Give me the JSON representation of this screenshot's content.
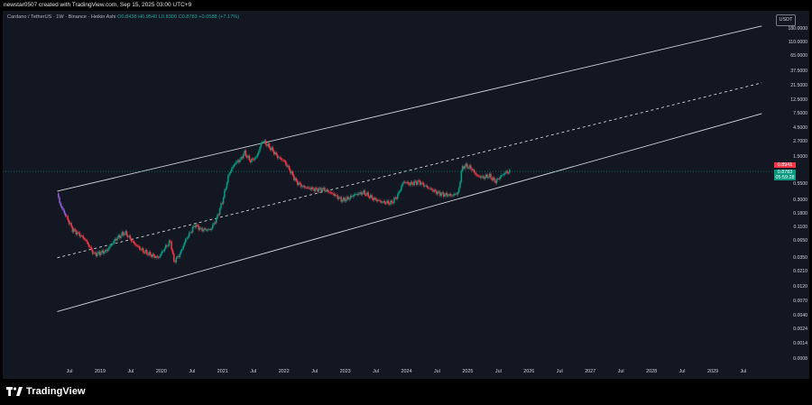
{
  "header": {
    "attribution": "newstar0507 created with TradingView.com, Sep 15, 2025 03:00 UTC+9"
  },
  "symbol_line": {
    "name": "Cardano / TetherUS · 1W · Binance · Heikin Ashi",
    "ohlc": "O0.8438 H0.9540 L0.8300 C0.8783 +0.0588 (+7.17%)"
  },
  "currency_button": "USDT",
  "price_tags": {
    "last_close": "0.8941",
    "current_price": "0.8783",
    "countdown": "05:59:28"
  },
  "footer": {
    "brand": "TradingView"
  },
  "colors": {
    "background": "#131722",
    "up_candle": "#089981",
    "down_candle": "#f23645",
    "channel_lines": "#d1d4dc"
  },
  "chart_data": {
    "type": "candlestick",
    "scale": "log",
    "symbol": "ADA/USDT",
    "interval": "1W",
    "y_ticks": [
      "180.0000",
      "110.0000",
      "65.0000",
      "37.5000",
      "21.5000",
      "12.5000",
      "7.5000",
      "4.5000",
      "2.7000",
      "1.5000",
      "0.5500",
      "0.3000",
      "0.1800",
      "0.1100",
      "0.0650",
      "0.0350",
      "0.0210",
      "0.0120",
      "0.0070",
      "0.0040",
      "0.0024",
      "0.0014",
      "0.0008"
    ],
    "y_tick_values": [
      180,
      110,
      65,
      37.5,
      21.5,
      12.5,
      7.5,
      4.5,
      2.7,
      1.5,
      0.55,
      0.3,
      0.18,
      0.11,
      0.065,
      0.035,
      0.021,
      0.012,
      0.007,
      0.004,
      0.0024,
      0.0014,
      0.0008
    ],
    "x_ticks": [
      "Jul",
      "2019",
      "Jul",
      "2020",
      "Jul",
      "2021",
      "Jul",
      "2022",
      "Jul",
      "2023",
      "Jul",
      "2024",
      "Jul",
      "2025",
      "Jul",
      "2026",
      "Jul",
      "2027",
      "Jul",
      "2028",
      "Jul",
      "2029",
      "Jul"
    ],
    "x_tick_dates": [
      2018.5,
      2019,
      2019.5,
      2020,
      2020.5,
      2021,
      2021.5,
      2022,
      2022.5,
      2023,
      2023.5,
      2024,
      2024.5,
      2025,
      2025.5,
      2026,
      2026.5,
      2027,
      2027.5,
      2028,
      2028.5,
      2029,
      2029.5
    ],
    "price_path": [
      [
        2018.3,
        0.38
      ],
      [
        2018.35,
        0.25
      ],
      [
        2018.45,
        0.16
      ],
      [
        2018.55,
        0.1
      ],
      [
        2018.65,
        0.085
      ],
      [
        2018.75,
        0.07
      ],
      [
        2018.9,
        0.04
      ],
      [
        2019.0,
        0.042
      ],
      [
        2019.1,
        0.045
      ],
      [
        2019.25,
        0.07
      ],
      [
        2019.4,
        0.09
      ],
      [
        2019.45,
        0.08
      ],
      [
        2019.55,
        0.06
      ],
      [
        2019.7,
        0.045
      ],
      [
        2019.85,
        0.038
      ],
      [
        2019.95,
        0.035
      ],
      [
        2020.05,
        0.05
      ],
      [
        2020.15,
        0.065
      ],
      [
        2020.2,
        0.03
      ],
      [
        2020.3,
        0.04
      ],
      [
        2020.4,
        0.07
      ],
      [
        2020.55,
        0.12
      ],
      [
        2020.65,
        0.1
      ],
      [
        2020.8,
        0.1
      ],
      [
        2020.9,
        0.15
      ],
      [
        2021.0,
        0.3
      ],
      [
        2021.1,
        0.8
      ],
      [
        2021.2,
        1.2
      ],
      [
        2021.3,
        1.4
      ],
      [
        2021.35,
        1.8
      ],
      [
        2021.45,
        1.3
      ],
      [
        2021.55,
        1.5
      ],
      [
        2021.65,
        2.8
      ],
      [
        2021.72,
        2.4
      ],
      [
        2021.8,
        2.0
      ],
      [
        2021.9,
        1.5
      ],
      [
        2022.0,
        1.3
      ],
      [
        2022.1,
        0.9
      ],
      [
        2022.2,
        0.6
      ],
      [
        2022.3,
        0.5
      ],
      [
        2022.5,
        0.45
      ],
      [
        2022.65,
        0.45
      ],
      [
        2022.8,
        0.38
      ],
      [
        2022.95,
        0.3
      ],
      [
        2023.05,
        0.32
      ],
      [
        2023.15,
        0.37
      ],
      [
        2023.3,
        0.4
      ],
      [
        2023.45,
        0.32
      ],
      [
        2023.6,
        0.28
      ],
      [
        2023.75,
        0.27
      ],
      [
        2023.85,
        0.35
      ],
      [
        2023.95,
        0.6
      ],
      [
        2024.05,
        0.55
      ],
      [
        2024.2,
        0.6
      ],
      [
        2024.35,
        0.48
      ],
      [
        2024.5,
        0.4
      ],
      [
        2024.6,
        0.37
      ],
      [
        2024.75,
        0.36
      ],
      [
        2024.85,
        0.4
      ],
      [
        2024.9,
        0.95
      ],
      [
        2024.95,
        1.1
      ],
      [
        2025.05,
        1.0
      ],
      [
        2025.15,
        0.75
      ],
      [
        2025.25,
        0.7
      ],
      [
        2025.35,
        0.75
      ],
      [
        2025.45,
        0.6
      ],
      [
        2025.55,
        0.75
      ],
      [
        2025.62,
        0.85
      ],
      [
        2025.7,
        0.88
      ]
    ],
    "channel": {
      "upper": [
        [
          2018.3,
          0.42
        ],
        [
          2029.8,
          200
        ]
      ],
      "middle": [
        [
          2018.3,
          0.035
        ],
        [
          2029.8,
          24
        ]
      ],
      "lower": [
        [
          2018.3,
          0.0047
        ],
        [
          2029.8,
          7.6
        ]
      ]
    },
    "last_price": 0.8783
  }
}
